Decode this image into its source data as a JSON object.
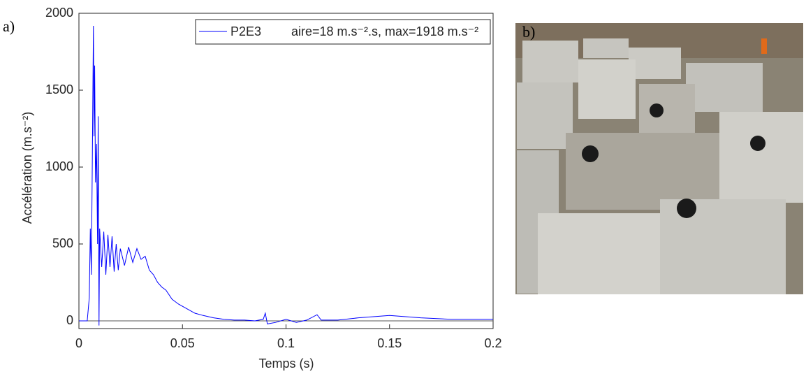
{
  "panel_labels": [
    "a)",
    "b)"
  ],
  "chart_data": {
    "type": "line",
    "xlabel": "Temps (s)",
    "ylabel": "Accélération (m.s⁻²)",
    "xlim": [
      0,
      0.2
    ],
    "ylim": [
      -50,
      2000
    ],
    "xticks": [
      0,
      0.05,
      0.1,
      0.15,
      0.2
    ],
    "yticks": [
      0,
      500,
      1000,
      1500,
      2000
    ],
    "legend": "upper right",
    "annotation": "aire=18 m.s⁻².s, max=1918 m.s⁻²",
    "x": [
      0,
      0.004,
      0.005,
      0.0055,
      0.006,
      0.0065,
      0.007,
      0.0073,
      0.0076,
      0.008,
      0.0085,
      0.009,
      0.0093,
      0.0097,
      0.01,
      0.011,
      0.012,
      0.013,
      0.014,
      0.015,
      0.016,
      0.017,
      0.018,
      0.019,
      0.02,
      0.022,
      0.024,
      0.026,
      0.028,
      0.03,
      0.032,
      0.034,
      0.036,
      0.038,
      0.04,
      0.042,
      0.045,
      0.048,
      0.052,
      0.056,
      0.06,
      0.065,
      0.07,
      0.075,
      0.08,
      0.085,
      0.089,
      0.09,
      0.091,
      0.095,
      0.1,
      0.105,
      0.11,
      0.115,
      0.117,
      0.125,
      0.135,
      0.15,
      0.165,
      0.18,
      0.2
    ],
    "series": [
      {
        "name": "P2E3",
        "color": "#0000ff",
        "values": [
          0,
          0,
          150,
          600,
          300,
          1100,
          1918,
          1200,
          1660,
          900,
          1150,
          500,
          1330,
          -30,
          600,
          350,
          580,
          300,
          560,
          350,
          550,
          320,
          500,
          330,
          470,
          360,
          480,
          380,
          470,
          400,
          420,
          330,
          300,
          250,
          220,
          200,
          140,
          110,
          80,
          50,
          35,
          20,
          10,
          5,
          5,
          0,
          10,
          50,
          -20,
          -10,
          10,
          -10,
          5,
          40,
          5,
          5,
          20,
          35,
          20,
          10,
          10
        ]
      }
    ]
  }
}
